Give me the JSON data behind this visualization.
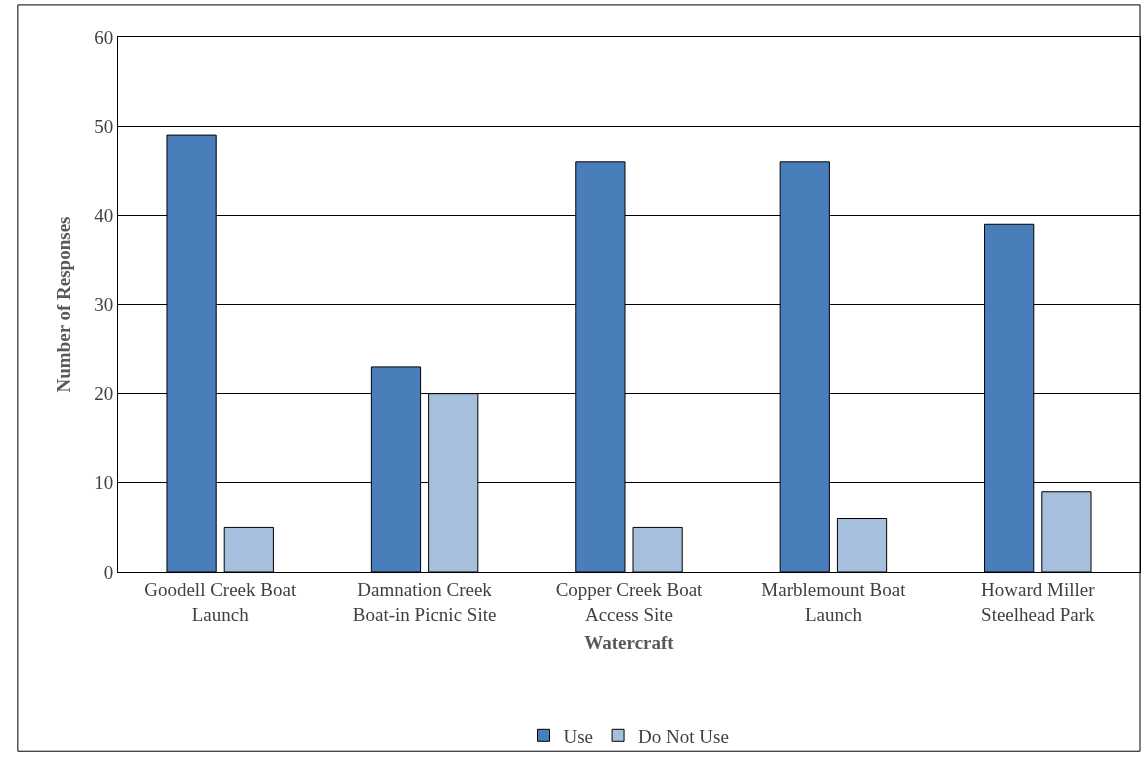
{
  "chart_data": {
    "type": "bar",
    "xlabel": "Watercraft",
    "ylabel": "Number of Responses",
    "categories": [
      "Goodell Creek Boat Launch",
      "Damnation Creek Boat-in Picnic Site",
      "Copper Creek Boat Access Site",
      "Marblemount Boat Launch",
      "Howard Miller Steelhead Park"
    ],
    "series": [
      {
        "name": "Use",
        "color": "#4a7ebb",
        "values": [
          49,
          23,
          46,
          46,
          39
        ]
      },
      {
        "name": "Do Not Use",
        "color": "#a5bfdd",
        "values": [
          5,
          20,
          5,
          6,
          9
        ]
      }
    ],
    "ylim": [
      0,
      60
    ],
    "yticks": [
      0,
      10,
      20,
      30,
      40,
      50,
      60
    ],
    "grid": "y",
    "legend": "bottom"
  }
}
